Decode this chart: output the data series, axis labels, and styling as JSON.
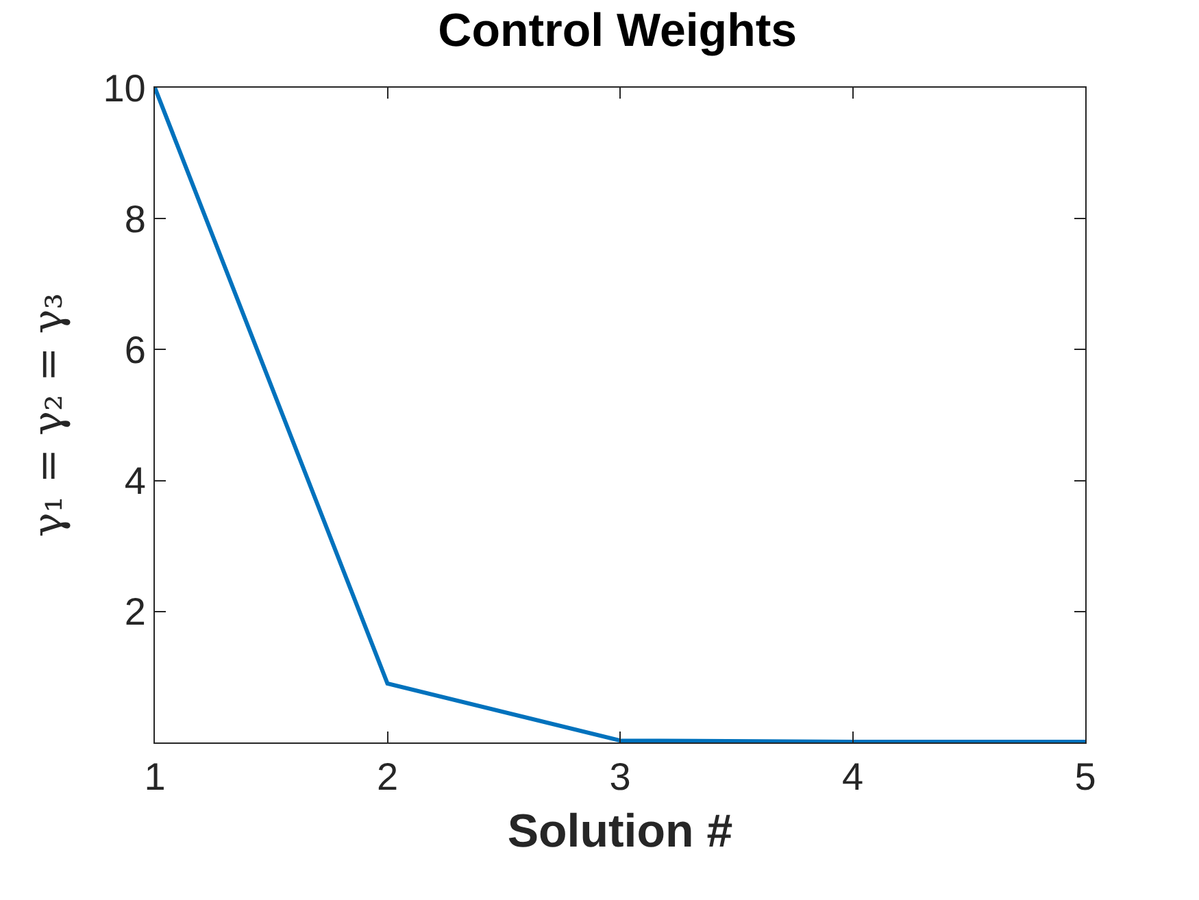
{
  "chart_data": {
    "type": "line",
    "title": "Control Weights",
    "xlabel": "Solution #",
    "ylabel": "γ₁ = γ₂ = γ₃",
    "x": [
      1,
      2,
      3,
      4,
      5
    ],
    "series": [
      {
        "color": "#0072bd",
        "values": [
          10,
          0.9,
          0.03,
          0.01,
          0.01
        ]
      }
    ],
    "xlim": [
      1,
      5
    ],
    "xticks": [
      1,
      2,
      3,
      4,
      5
    ],
    "ylim": [
      0,
      10
    ],
    "yticks": [
      {
        "value": 0,
        "label": null
      },
      2,
      4,
      6,
      8,
      10
    ],
    "grid": false,
    "marker": "none",
    "line_style": "solid"
  }
}
